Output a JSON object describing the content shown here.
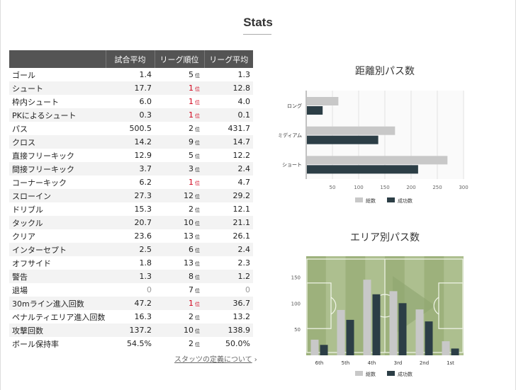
{
  "page": {
    "title": "Stats",
    "definition_link": "スタッツの定義について"
  },
  "table": {
    "headers": [
      "",
      "試合平均",
      "リーグ順位",
      "リーグ平均"
    ],
    "rank_suffix": "位",
    "rows": [
      {
        "name": "ゴール",
        "avg": "1.4",
        "rank": "5",
        "league_avg": "1.3",
        "top": false,
        "muted": false
      },
      {
        "name": "シュート",
        "avg": "17.7",
        "rank": "1",
        "league_avg": "12.8",
        "top": true,
        "muted": false
      },
      {
        "name": "枠内シュート",
        "avg": "6.0",
        "rank": "1",
        "league_avg": "4.0",
        "top": true,
        "muted": false
      },
      {
        "name": "PKによるシュート",
        "avg": "0.3",
        "rank": "1",
        "league_avg": "0.1",
        "top": true,
        "muted": false
      },
      {
        "name": "パス",
        "avg": "500.5",
        "rank": "2",
        "league_avg": "431.7",
        "top": false,
        "muted": false
      },
      {
        "name": "クロス",
        "avg": "14.2",
        "rank": "9",
        "league_avg": "14.7",
        "top": false,
        "muted": false
      },
      {
        "name": "直接フリーキック",
        "avg": "12.9",
        "rank": "5",
        "league_avg": "12.2",
        "top": false,
        "muted": false
      },
      {
        "name": "間接フリーキック",
        "avg": "3.7",
        "rank": "3",
        "league_avg": "2.4",
        "top": false,
        "muted": false
      },
      {
        "name": "コーナーキック",
        "avg": "6.2",
        "rank": "1",
        "league_avg": "4.7",
        "top": true,
        "muted": false
      },
      {
        "name": "スローイン",
        "avg": "27.3",
        "rank": "12",
        "league_avg": "29.2",
        "top": false,
        "muted": false
      },
      {
        "name": "ドリブル",
        "avg": "15.3",
        "rank": "2",
        "league_avg": "12.1",
        "top": false,
        "muted": false
      },
      {
        "name": "タックル",
        "avg": "20.7",
        "rank": "10",
        "league_avg": "21.1",
        "top": false,
        "muted": false
      },
      {
        "name": "クリア",
        "avg": "23.6",
        "rank": "13",
        "league_avg": "26.1",
        "top": false,
        "muted": false
      },
      {
        "name": "インターセプト",
        "avg": "2.5",
        "rank": "6",
        "league_avg": "2.4",
        "top": false,
        "muted": false
      },
      {
        "name": "オフサイド",
        "avg": "1.8",
        "rank": "13",
        "league_avg": "2.3",
        "top": false,
        "muted": false
      },
      {
        "name": "警告",
        "avg": "1.3",
        "rank": "8",
        "league_avg": "1.2",
        "top": false,
        "muted": false
      },
      {
        "name": "退場",
        "avg": "0",
        "rank": "7",
        "league_avg": "0",
        "top": false,
        "muted": true
      },
      {
        "name": "30mライン進入回数",
        "avg": "47.2",
        "rank": "1",
        "league_avg": "36.7",
        "top": true,
        "muted": false
      },
      {
        "name": "ペナルティエリア進入回数",
        "avg": "16.3",
        "rank": "2",
        "league_avg": "13.2",
        "top": false,
        "muted": false
      },
      {
        "name": "攻撃回数",
        "avg": "137.2",
        "rank": "10",
        "league_avg": "138.9",
        "top": false,
        "muted": false
      },
      {
        "name": "ボール保持率",
        "avg": "54.5%",
        "rank": "2",
        "league_avg": "50.0%",
        "top": false,
        "muted": false
      }
    ]
  },
  "chart_data": [
    {
      "type": "bar",
      "orientation": "horizontal",
      "title": "距離別パス数",
      "categories": [
        "ロング",
        "ミディアム",
        "ショート"
      ],
      "series": [
        {
          "name": "総数",
          "values": [
            60,
            168,
            268
          ],
          "color": "#c8c8c8"
        },
        {
          "name": "成功数",
          "values": [
            30,
            136,
            212
          ],
          "color": "#2c3e46"
        }
      ],
      "xlim": [
        0,
        300
      ],
      "xticks": [
        "50",
        "100",
        "150",
        "200",
        "250",
        "300"
      ],
      "grid": true,
      "legend": "bottom"
    },
    {
      "type": "bar",
      "title": "エリア別パス数",
      "categories": [
        "6th",
        "5th",
        "4th",
        "3rd",
        "2nd",
        "1st"
      ],
      "series": [
        {
          "name": "総数",
          "values": [
            30,
            87,
            145,
            123,
            88,
            27
          ],
          "color": "#c8c8c8"
        },
        {
          "name": "成功数",
          "values": [
            20,
            68,
            117,
            100,
            65,
            13
          ],
          "color": "#2c3e46"
        }
      ],
      "ylim": [
        0,
        190
      ],
      "yticks": [
        "50",
        "100",
        "150"
      ],
      "background": "soccer-pitch",
      "legend": "bottom"
    }
  ]
}
